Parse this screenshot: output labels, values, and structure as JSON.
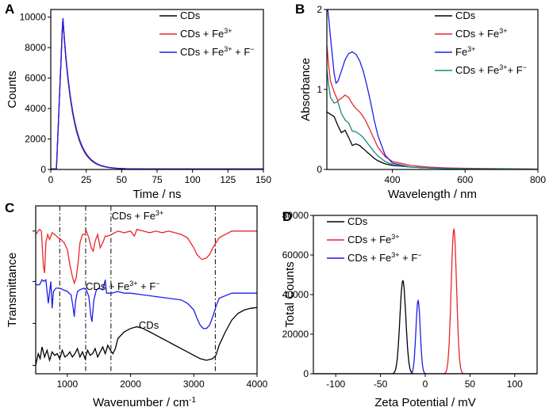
{
  "colors": {
    "black": "#000000",
    "red": "#e8262a",
    "blue": "#1d1dea",
    "teal": "#1a8a7a"
  },
  "panels": [
    {
      "id": "A",
      "letter": "A",
      "chart_data": {
        "type": "line",
        "xlabel": "Time / ns",
        "ylabel": "Counts",
        "xlim": [
          0,
          150
        ],
        "ylim": [
          0,
          10500
        ],
        "xticks": [
          0,
          25,
          50,
          75,
          100,
          125,
          150
        ],
        "yticks": [
          0,
          2000,
          4000,
          6000,
          8000,
          10000
        ],
        "series": [
          {
            "name": "CDs",
            "legend": [
              "CDs"
            ],
            "color": "#000000",
            "model": "decay",
            "params": {
              "t0": 8.5,
              "t_on": 4.5,
              "peak": 9900,
              "tau": 7.0,
              "base": 30
            }
          },
          {
            "name": "CDs + Fe3+",
            "legend": [
              "CDs + Fe",
              "3+",
              ""
            ],
            "color": "#e8262a",
            "model": "decay",
            "params": {
              "t0": 8.5,
              "t_on": 4.5,
              "peak": 9950,
              "tau": 7.1,
              "base": 30
            }
          },
          {
            "name": "CDs + Fe3+ + F−",
            "legend": [
              "CDs + Fe",
              "3+",
              " + F",
              "−",
              ""
            ],
            "color": "#1d1dea",
            "model": "decay",
            "params": {
              "t0": 8.5,
              "t_on": 4.5,
              "peak": 10000,
              "tau": 7.2,
              "base": 30
            }
          }
        ]
      }
    },
    {
      "id": "B",
      "letter": "B",
      "chart_data": {
        "type": "line",
        "xlabel": "Wavelength / nm",
        "ylabel": "Absorbance",
        "xlim": [
          220,
          800
        ],
        "ylim": [
          0,
          2
        ],
        "xticks": [
          400,
          600,
          800
        ],
        "yticks": [
          0,
          1,
          2
        ],
        "series": [
          {
            "name": "CDs",
            "legend": [
              "CDs"
            ],
            "color": "#000000",
            "x": [
              220,
              230,
              240,
              250,
              260,
              270,
              280,
              290,
              300,
              310,
              320,
              330,
              340,
              350,
              360,
              380,
              400,
              450,
              500,
              550,
              600,
              700,
              800
            ],
            "y": [
              0.72,
              0.69,
              0.66,
              0.55,
              0.46,
              0.49,
              0.4,
              0.3,
              0.32,
              0.3,
              0.26,
              0.22,
              0.18,
              0.14,
              0.11,
              0.07,
              0.05,
              0.03,
              0.02,
              0.015,
              0.01,
              0.005,
              0.003
            ]
          },
          {
            "name": "CDs + Fe3+",
            "legend": [
              "CDs + Fe",
              "3+",
              ""
            ],
            "color": "#e8262a",
            "x": [
              220,
              225,
              230,
              240,
              250,
              260,
              270,
              280,
              290,
              300,
              310,
              320,
              330,
              340,
              350,
              360,
              380,
              400,
              450,
              500,
              550,
              600,
              700,
              800
            ],
            "y": [
              1.55,
              1.3,
              1.1,
              0.97,
              0.86,
              0.89,
              0.93,
              0.9,
              0.82,
              0.76,
              0.72,
              0.66,
              0.58,
              0.48,
              0.38,
              0.28,
              0.16,
              0.1,
              0.05,
              0.03,
              0.02,
              0.015,
              0.01,
              0.005
            ]
          },
          {
            "name": "Fe3+",
            "legend": [
              "Fe",
              "3+",
              ""
            ],
            "color": "#1d1dea",
            "x": [
              220,
              225,
              230,
              240,
              245,
              250,
              260,
              270,
              280,
              290,
              300,
              310,
              320,
              330,
              340,
              350,
              360,
              380,
              400,
              450,
              500,
              550,
              600,
              700,
              800
            ],
            "y": [
              2.1,
              1.9,
              1.65,
              1.2,
              1.08,
              1.1,
              1.23,
              1.37,
              1.45,
              1.47,
              1.44,
              1.36,
              1.23,
              1.05,
              0.85,
              0.62,
              0.43,
              0.18,
              0.08,
              0.03,
              0.02,
              0.01,
              0.008,
              0.005,
              0.003
            ]
          },
          {
            "name": "CDs + Fe3+ + F−",
            "legend": [
              "CDs + Fe",
              "3+",
              "+ F",
              "−",
              ""
            ],
            "color": "#1a8a7a",
            "x": [
              220,
              225,
              230,
              240,
              250,
              260,
              270,
              280,
              290,
              300,
              310,
              320,
              330,
              340,
              350,
              360,
              380,
              400,
              450,
              500,
              550,
              600,
              700,
              800
            ],
            "y": [
              1.25,
              1.05,
              0.9,
              0.83,
              0.85,
              0.7,
              0.62,
              0.58,
              0.48,
              0.47,
              0.44,
              0.4,
              0.34,
              0.28,
              0.22,
              0.17,
              0.1,
              0.06,
              0.03,
              0.02,
              0.015,
              0.01,
              0.007,
              0.004
            ]
          }
        ]
      }
    },
    {
      "id": "C",
      "letter": "C",
      "chart_data": {
        "type": "line",
        "xlabel": "Wavenumber / cm",
        "xlabel_sup": "-1",
        "ylabel": "Transmittance",
        "xlim": [
          500,
          4000
        ],
        "ylim": [
          0,
          10
        ],
        "xticks": [
          1000,
          2000,
          3000,
          4000
        ],
        "vlines": [
          880,
          1290,
          1690,
          3340
        ],
        "labels": [
          {
            "parts": [
              "CDs + Fe",
              "3+",
              ""
            ],
            "x": 1700,
            "y": 9.2
          },
          {
            "parts": [
              "CDs + Fe",
              "3+",
              " + F",
              "−",
              ""
            ],
            "x": 1290,
            "y": 5.0
          },
          {
            "parts": [
              "CDs"
            ],
            "x": 2130,
            "y": 2.7
          }
        ],
        "series": [
          {
            "name": "CDs + Fe3+",
            "color": "#e8262a",
            "x": [
              500,
              560,
              590,
              620,
              640,
              660,
              690,
              720,
              760,
              800,
              860,
              900,
              950,
              1000,
              1040,
              1080,
              1110,
              1140,
              1170,
              1200,
              1240,
              1280,
              1300,
              1340,
              1380,
              1410,
              1440,
              1480,
              1520,
              1560,
              1600,
              1640,
              1700,
              1800,
              1900,
              2000,
              2060,
              2100,
              2200,
              2300,
              2400,
              2500,
              2600,
              2700,
              2800,
              2900,
              2950,
              3000,
              3050,
              3100,
              3130,
              3200,
              3250,
              3300,
              3400,
              3600,
              3800,
              4000
            ],
            "y": [
              8.3,
              8.6,
              8.5,
              6.5,
              6.0,
              7.8,
              8.3,
              8.0,
              8.4,
              8.3,
              8.1,
              8.0,
              7.8,
              7.4,
              6.5,
              5.8,
              5.4,
              5.7,
              6.6,
              7.8,
              8.3,
              8.3,
              8.5,
              8.1,
              7.5,
              7.3,
              7.9,
              8.3,
              7.5,
              7.8,
              8.2,
              8.2,
              8.3,
              8.5,
              8.4,
              8.5,
              8.2,
              8.6,
              8.5,
              8.4,
              8.5,
              8.4,
              8.5,
              8.4,
              8.3,
              8.1,
              7.8,
              7.5,
              7.1,
              6.9,
              6.8,
              6.9,
              7.1,
              7.5,
              8.1,
              8.5,
              8.5,
              8.5
            ]
          },
          {
            "name": "CDs + Fe3+ + F−",
            "color": "#1d1dea",
            "x": [
              500,
              560,
              600,
              630,
              660,
              700,
              740,
              760,
              780,
              820,
              880,
              940,
              1000,
              1060,
              1090,
              1110,
              1130,
              1160,
              1200,
              1260,
              1300,
              1340,
              1370,
              1390,
              1420,
              1460,
              1500,
              1560,
              1600,
              1620,
              1640,
              1700,
              1800,
              1900,
              2000,
              2200,
              2400,
              2600,
              2800,
              2900,
              3000,
              3050,
              3100,
              3150,
              3200,
              3250,
              3300,
              3350,
              3400,
              3600,
              3800,
              4000
            ],
            "y": [
              5.3,
              5.3,
              5.6,
              5.5,
              5.6,
              4.2,
              5.5,
              3.9,
              4.9,
              5.1,
              5.1,
              5.0,
              4.9,
              4.7,
              4.0,
              3.4,
              4.3,
              4.9,
              5.0,
              5.1,
              5.0,
              4.6,
              3.5,
              3.1,
              4.4,
              5.0,
              5.1,
              5.0,
              5.6,
              4.8,
              4.8,
              4.8,
              4.9,
              4.8,
              4.8,
              4.7,
              4.6,
              4.5,
              4.4,
              4.2,
              3.8,
              3.3,
              2.9,
              2.7,
              2.7,
              2.9,
              3.4,
              4.0,
              4.5,
              4.8,
              4.8,
              4.8
            ]
          },
          {
            "name": "CDs",
            "color": "#000000",
            "x": [
              500,
              540,
              570,
              600,
              640,
              680,
              720,
              760,
              800,
              840,
              880,
              920,
              960,
              1000,
              1040,
              1080,
              1120,
              1160,
              1200,
              1240,
              1280,
              1320,
              1360,
              1400,
              1440,
              1480,
              1520,
              1560,
              1600,
              1640,
              1680,
              1720,
              1760,
              1800,
              1900,
              2000,
              2100,
              2200,
              2300,
              2400,
              2500,
              2600,
              2700,
              2800,
              2900,
              3000,
              3100,
              3200,
              3300,
              3350,
              3400,
              3500,
              3600,
              3700,
              3800,
              3900,
              4000
            ],
            "y": [
              0.5,
              1.2,
              0.9,
              1.6,
              1.0,
              1.4,
              0.8,
              1.3,
              1.1,
              1.2,
              0.9,
              1.4,
              1.0,
              1.1,
              1.3,
              1.0,
              1.2,
              1.5,
              1.0,
              1.3,
              0.9,
              1.4,
              1.1,
              1.2,
              1.5,
              1.0,
              1.3,
              1.6,
              1.2,
              1.7,
              1.4,
              1.2,
              1.5,
              2.1,
              2.5,
              2.7,
              2.8,
              2.7,
              2.5,
              2.3,
              2.1,
              1.9,
              1.7,
              1.5,
              1.3,
              1.1,
              0.9,
              0.8,
              0.9,
              1.1,
              1.7,
              2.5,
              3.2,
              3.6,
              3.8,
              3.9,
              3.95
            ]
          }
        ]
      }
    },
    {
      "id": "D",
      "letter": "D",
      "chart_data": {
        "type": "line",
        "xlabel": "Zeta Potential / mV",
        "ylabel": "Total Counts",
        "xlim": [
          -125,
          125
        ],
        "ylim": [
          0,
          80000
        ],
        "xticks": [
          -100,
          -50,
          0,
          50,
          100
        ],
        "yticks": [
          0,
          20000,
          40000,
          60000,
          80000
        ],
        "series": [
          {
            "name": "CDs",
            "legend": [
              "CDs"
            ],
            "color": "#000000",
            "model": "peak",
            "params": {
              "mu": -25,
              "sigma": 3.3,
              "height": 47000
            }
          },
          {
            "name": "CDs + Fe3+",
            "legend": [
              "CDs + Fe",
              "3+",
              ""
            ],
            "color": "#e8262a",
            "model": "peak",
            "params": {
              "mu": 32,
              "sigma": 3.0,
              "height": 73000
            }
          },
          {
            "name": "CDs + Fe3+ + F−",
            "legend": [
              "CDs + Fe",
              "3+",
              " + F",
              "−",
              ""
            ],
            "color": "#1d1dea",
            "model": "peak",
            "params": {
              "mu": -8,
              "sigma": 2.4,
              "height": 37000
            }
          }
        ]
      }
    }
  ]
}
